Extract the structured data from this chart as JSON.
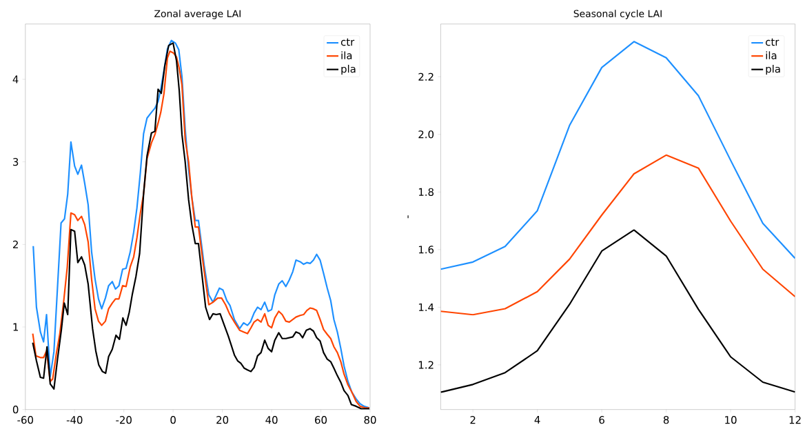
{
  "chart_data": [
    {
      "type": "line",
      "title": "Zonal average LAI",
      "xlim": [
        -60,
        80
      ],
      "ylim": [
        0,
        4.67
      ],
      "xticks": [
        -60,
        -40,
        -20,
        0,
        20,
        40,
        60,
        80
      ],
      "yticks": [
        0,
        1,
        2,
        3,
        4
      ],
      "legend": "top right",
      "grid": false,
      "series": [
        {
          "name": "ctr",
          "color": "#1e90ff",
          "x": [
            -56.8,
            -55.5,
            -53.9,
            -52.6,
            -51.4,
            -49.9,
            -48.4,
            -45.5,
            -44.1,
            -42.8,
            -41.5,
            -40.0,
            -38.7,
            -37.2,
            -35.9,
            -34.5,
            -33.1,
            -31.7,
            -30.3,
            -29.0,
            -27.5,
            -26.2,
            -24.7,
            -23.4,
            -22.0,
            -20.5,
            -19.1,
            -17.4,
            -16.0,
            -14.7,
            -13.3,
            -12.0,
            -10.6,
            -8.8,
            -7.4,
            -6.1,
            -5.0,
            -3.7,
            -2.3,
            -0.7,
            0.9,
            2.3,
            3.6,
            4.9,
            6.3,
            7.6,
            9.0,
            10.3,
            12.6,
            14.5,
            16.2,
            18.8,
            20.2,
            21.8,
            23.1,
            24.9,
            27.0,
            28.6,
            30.2,
            31.4,
            32.9,
            34.3,
            35.7,
            37.2,
            38.6,
            40.0,
            41.3,
            42.9,
            44.3,
            45.8,
            47.2,
            48.6,
            49.9,
            51.6,
            53.0,
            54.3,
            55.7,
            57.0,
            58.3,
            59.7,
            61.1,
            62.6,
            64.0,
            65.3,
            66.7,
            68.1,
            69.4,
            71.0,
            72.6,
            74.3,
            75.9,
            77.5,
            79.7
          ],
          "values": [
            1.98,
            1.24,
            0.94,
            0.82,
            1.15,
            0.4,
            0.7,
            2.26,
            2.31,
            2.61,
            3.24,
            2.95,
            2.85,
            2.96,
            2.74,
            2.48,
            1.91,
            1.58,
            1.34,
            1.22,
            1.35,
            1.5,
            1.55,
            1.46,
            1.5,
            1.7,
            1.71,
            1.91,
            2.15,
            2.44,
            2.87,
            3.34,
            3.53,
            3.6,
            3.65,
            3.73,
            3.88,
            4.11,
            4.37,
            4.47,
            4.44,
            4.36,
            4.03,
            3.4,
            2.9,
            2.57,
            2.29,
            2.29,
            1.75,
            1.39,
            1.3,
            1.47,
            1.45,
            1.32,
            1.26,
            1.09,
            0.98,
            1.05,
            1.02,
            1.06,
            1.17,
            1.24,
            1.21,
            1.3,
            1.19,
            1.21,
            1.39,
            1.52,
            1.56,
            1.49,
            1.57,
            1.67,
            1.81,
            1.79,
            1.76,
            1.78,
            1.77,
            1.81,
            1.88,
            1.81,
            1.65,
            1.47,
            1.32,
            1.09,
            0.94,
            0.74,
            0.53,
            0.34,
            0.21,
            0.13,
            0.07,
            0.04,
            0.02
          ]
        },
        {
          "name": "ila",
          "color": "#ff4500",
          "x": [
            -57.0,
            -55.7,
            -53.9,
            -52.6,
            -51.4,
            -49.9,
            -48.9,
            -47.4,
            -46.0,
            -44.4,
            -43.0,
            -41.5,
            -40.0,
            -38.7,
            -37.2,
            -35.9,
            -34.5,
            -33.1,
            -31.7,
            -30.3,
            -29.0,
            -27.5,
            -26.2,
            -24.7,
            -23.4,
            -22.0,
            -20.5,
            -19.1,
            -17.4,
            -16.0,
            -14.7,
            -13.3,
            -12.0,
            -10.6,
            -8.8,
            -7.4,
            -6.1,
            -5.0,
            -3.7,
            -2.3,
            -1.3,
            0.1,
            1.4,
            2.5,
            3.6,
            4.9,
            6.3,
            7.6,
            9.0,
            10.3,
            12.6,
            14.5,
            16.2,
            18.1,
            19.7,
            21.3,
            22.9,
            24.9,
            27.0,
            28.6,
            30.2,
            31.6,
            32.9,
            34.3,
            35.7,
            37.2,
            38.6,
            40.0,
            41.3,
            42.9,
            44.3,
            45.8,
            47.2,
            48.6,
            49.9,
            51.6,
            53.0,
            54.3,
            55.7,
            57.0,
            58.3,
            59.7,
            61.1,
            62.6,
            64.0,
            65.3,
            66.7,
            68.1,
            69.4,
            71.0,
            72.6,
            74.3,
            75.9,
            78.0,
            79.7
          ],
          "values": [
            0.92,
            0.65,
            0.63,
            0.63,
            0.71,
            0.34,
            0.37,
            0.68,
            0.92,
            1.32,
            1.72,
            2.38,
            2.36,
            2.29,
            2.34,
            2.24,
            2.03,
            1.58,
            1.22,
            1.07,
            1.02,
            1.07,
            1.22,
            1.29,
            1.34,
            1.34,
            1.5,
            1.49,
            1.73,
            1.85,
            2.08,
            2.38,
            2.61,
            3.04,
            3.23,
            3.33,
            3.47,
            3.6,
            3.83,
            4.26,
            4.34,
            4.32,
            4.27,
            4.13,
            3.93,
            3.27,
            3.0,
            2.57,
            2.21,
            2.21,
            1.68,
            1.27,
            1.3,
            1.35,
            1.35,
            1.27,
            1.16,
            1.06,
            0.96,
            0.94,
            0.92,
            0.99,
            1.06,
            1.09,
            1.06,
            1.16,
            1.02,
            0.99,
            1.11,
            1.19,
            1.15,
            1.07,
            1.06,
            1.09,
            1.12,
            1.14,
            1.15,
            1.2,
            1.23,
            1.22,
            1.2,
            1.09,
            0.97,
            0.91,
            0.86,
            0.76,
            0.69,
            0.58,
            0.43,
            0.3,
            0.21,
            0.1,
            0.04,
            0.02,
            0.02
          ]
        },
        {
          "name": "pla",
          "color": "#000000",
          "x": [
            -57.0,
            -55.5,
            -53.9,
            -52.6,
            -51.2,
            -49.9,
            -48.4,
            -46.9,
            -45.4,
            -44.2,
            -42.8,
            -41.5,
            -40.0,
            -38.7,
            -37.2,
            -35.9,
            -34.5,
            -32.7,
            -31.4,
            -30.2,
            -28.7,
            -27.4,
            -26.2,
            -24.7,
            -23.2,
            -21.8,
            -20.4,
            -19.1,
            -17.8,
            -16.6,
            -15.1,
            -13.6,
            -12.0,
            -10.6,
            -8.8,
            -7.4,
            -6.1,
            -4.8,
            -3.4,
            -1.8,
            0.0,
            1.4,
            2.5,
            3.6,
            4.9,
            6.3,
            7.6,
            9.0,
            10.3,
            13.2,
            14.8,
            16.2,
            17.5,
            19.1,
            20.8,
            22.4,
            23.5,
            24.9,
            26.2,
            27.5,
            28.9,
            30.2,
            31.6,
            32.9,
            34.3,
            35.7,
            37.2,
            38.6,
            40.0,
            41.3,
            42.9,
            44.3,
            45.8,
            47.2,
            48.6,
            49.9,
            51.4,
            52.6,
            54.1,
            55.6,
            57.0,
            58.3,
            59.7,
            61.1,
            62.6,
            64.0,
            65.3,
            66.7,
            68.1,
            69.4,
            71.0,
            72.4,
            74.3,
            76.4,
            79.7
          ],
          "values": [
            0.81,
            0.59,
            0.39,
            0.38,
            0.76,
            0.31,
            0.25,
            0.62,
            0.96,
            1.29,
            1.15,
            2.18,
            2.16,
            1.78,
            1.85,
            1.75,
            1.52,
            0.98,
            0.71,
            0.54,
            0.46,
            0.44,
            0.64,
            0.73,
            0.9,
            0.85,
            1.11,
            1.02,
            1.18,
            1.39,
            1.61,
            1.89,
            2.61,
            3.07,
            3.35,
            3.37,
            3.88,
            3.83,
            4.16,
            4.41,
            4.44,
            4.22,
            3.86,
            3.33,
            3.0,
            2.54,
            2.24,
            2.01,
            2.01,
            1.24,
            1.09,
            1.16,
            1.15,
            1.16,
            1.02,
            0.89,
            0.79,
            0.66,
            0.59,
            0.56,
            0.5,
            0.48,
            0.46,
            0.51,
            0.65,
            0.69,
            0.84,
            0.74,
            0.7,
            0.84,
            0.93,
            0.86,
            0.86,
            0.87,
            0.88,
            0.94,
            0.92,
            0.87,
            0.96,
            0.98,
            0.95,
            0.87,
            0.83,
            0.69,
            0.61,
            0.58,
            0.5,
            0.41,
            0.33,
            0.23,
            0.17,
            0.06,
            0.04,
            0.01,
            0.01
          ]
        }
      ]
    },
    {
      "type": "line",
      "title": "Seasonal cycle LAI",
      "ylabel": "-",
      "xlim": [
        1,
        12
      ],
      "ylim": [
        1.045,
        2.383
      ],
      "xticks": [
        2,
        4,
        6,
        8,
        10,
        12
      ],
      "yticks": [
        {
          "value": 1.2,
          "label": "1.2"
        },
        {
          "value": 1.4,
          "label": "1.4"
        },
        {
          "value": 1.6,
          "label": "1.6"
        },
        {
          "value": 1.8,
          "label": "1.8"
        },
        {
          "value": 2.0,
          "label": "2.0"
        },
        {
          "value": 2.2,
          "label": "2.2"
        }
      ],
      "legend": "top right",
      "grid": false,
      "x": [
        1,
        2,
        3,
        4,
        5,
        6,
        7,
        8,
        9,
        10,
        11,
        12
      ],
      "series": [
        {
          "name": "ctr",
          "color": "#1e90ff",
          "values": [
            1.532,
            1.557,
            1.611,
            1.735,
            2.031,
            2.232,
            2.322,
            2.266,
            2.134,
            1.91,
            1.691,
            1.57
          ]
        },
        {
          "name": "ila",
          "color": "#ff4500",
          "values": [
            1.386,
            1.374,
            1.395,
            1.454,
            1.567,
            1.72,
            1.863,
            1.928,
            1.883,
            1.699,
            1.532,
            1.437
          ]
        },
        {
          "name": "pla",
          "color": "#000000",
          "values": [
            1.105,
            1.132,
            1.173,
            1.249,
            1.41,
            1.595,
            1.668,
            1.578,
            1.393,
            1.228,
            1.14,
            1.106
          ]
        }
      ]
    }
  ]
}
